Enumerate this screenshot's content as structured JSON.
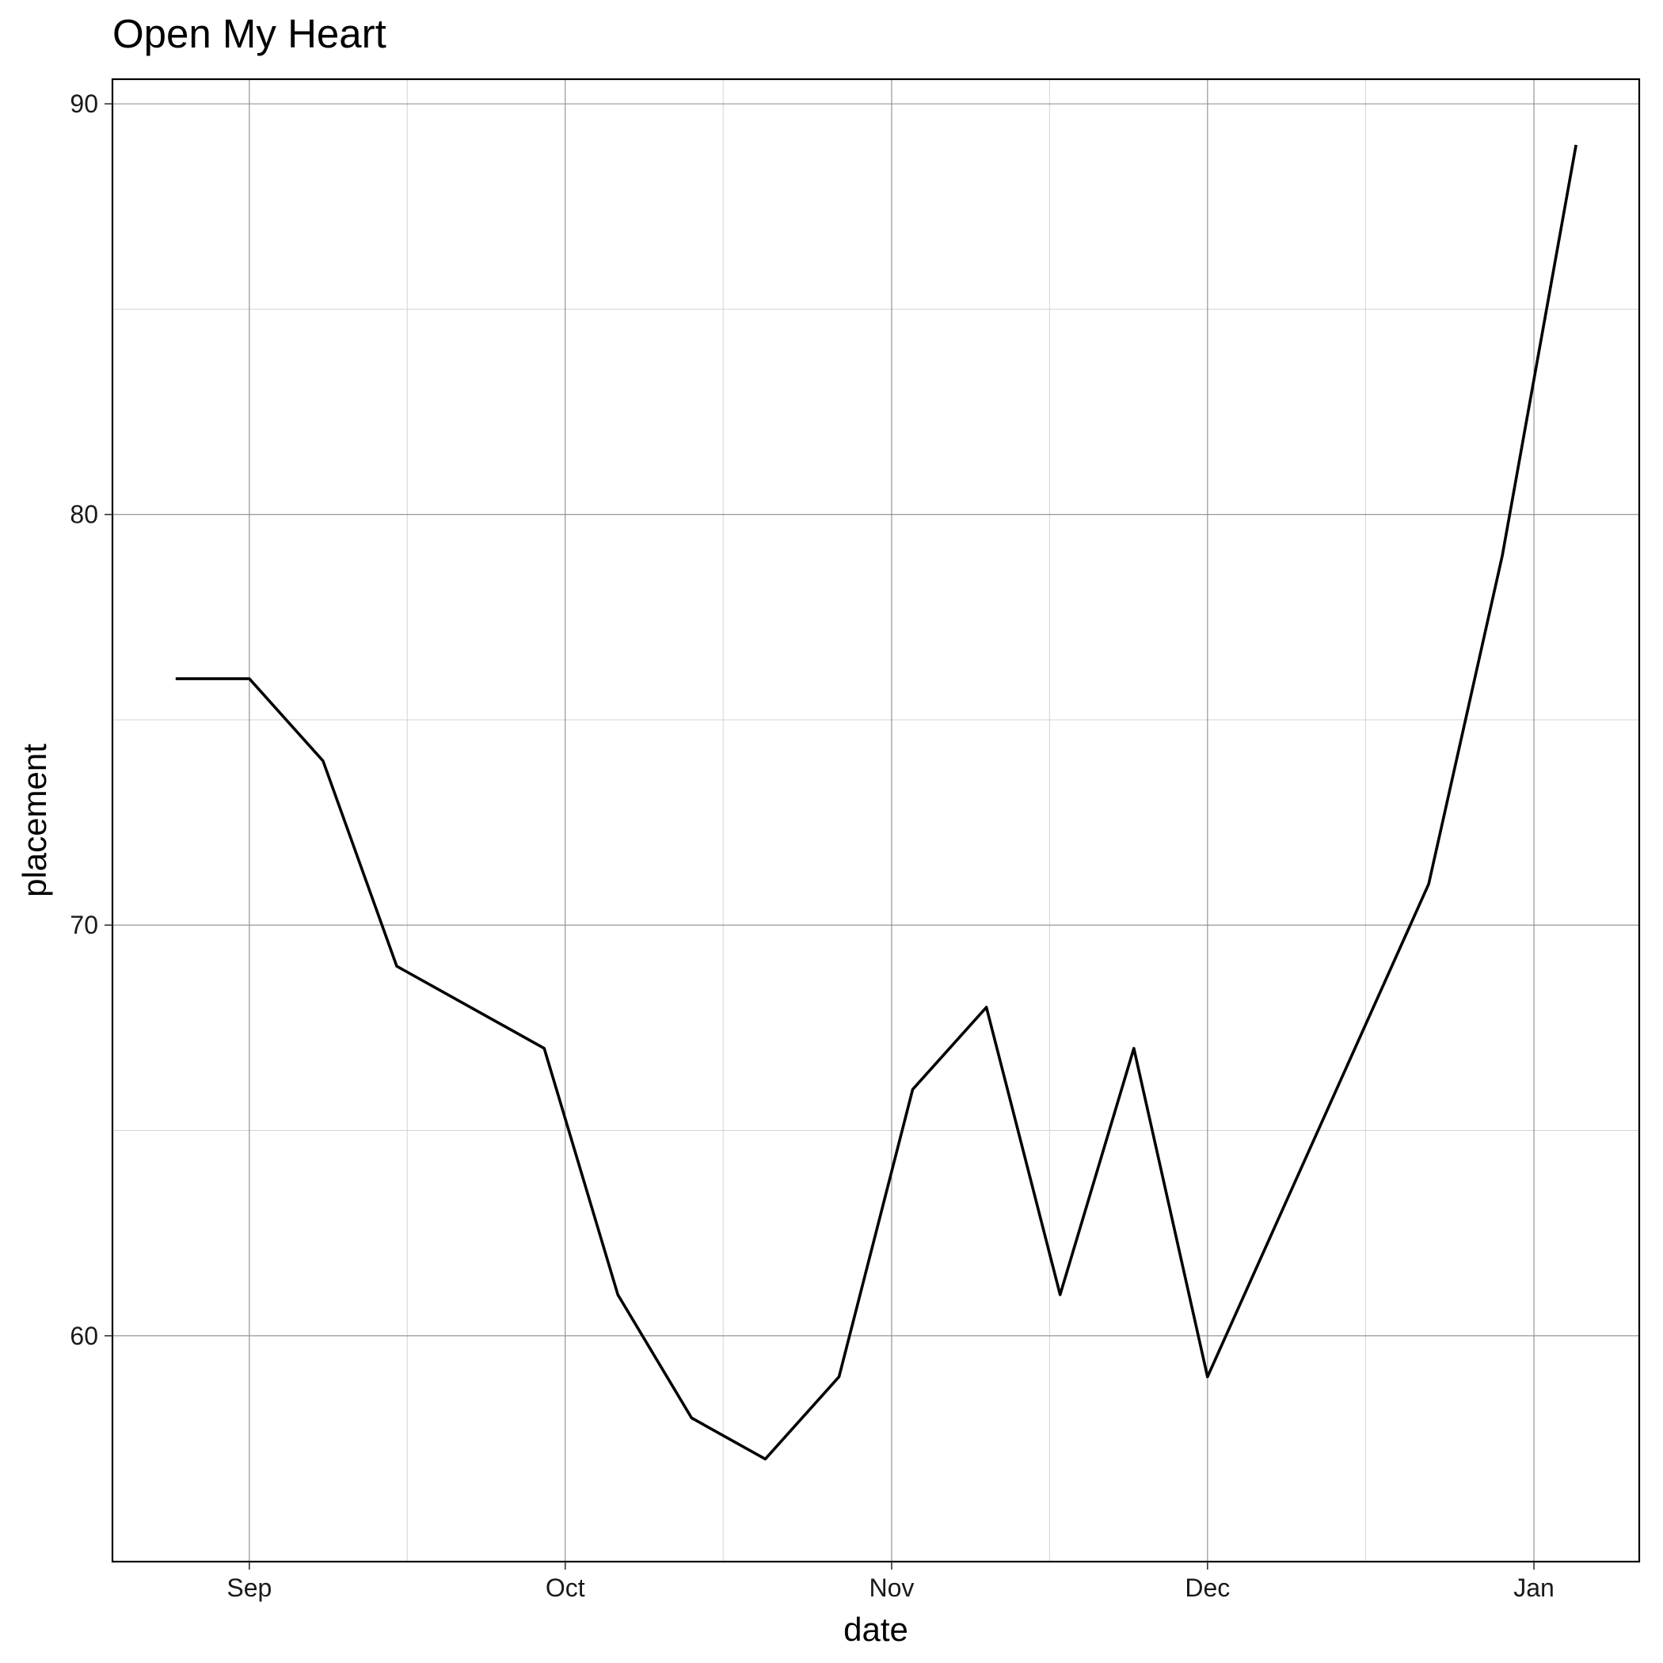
{
  "chart_data": {
    "type": "line",
    "title": "Open My Heart",
    "xlabel": "date",
    "ylabel": "placement",
    "x_tick_labels": [
      {
        "date": "2023-09-01",
        "label": "Sep"
      },
      {
        "date": "2023-10-01",
        "label": "Oct"
      },
      {
        "date": "2023-11-01",
        "label": "Nov"
      },
      {
        "date": "2023-12-01",
        "label": "Dec"
      },
      {
        "date": "2024-01-01",
        "label": "Jan"
      }
    ],
    "x_minor_ticks": [
      "2023-09-16",
      "2023-10-16",
      "2023-11-16",
      "2023-12-16"
    ],
    "y_ticks": [
      60,
      70,
      80,
      90
    ],
    "y_minor_ticks": [
      65,
      75,
      85
    ],
    "xlim": [
      "2023-08-19",
      "2024-01-11"
    ],
    "ylim": [
      54.5,
      90.6
    ],
    "grid": true,
    "series": [
      {
        "color": "#000000",
        "points": [
          {
            "x": "2023-08-25",
            "y": 76
          },
          {
            "x": "2023-09-01",
            "y": 76
          },
          {
            "x": "2023-09-08",
            "y": 74
          },
          {
            "x": "2023-09-15",
            "y": 69
          },
          {
            "x": "2023-09-29",
            "y": 67
          },
          {
            "x": "2023-10-06",
            "y": 61
          },
          {
            "x": "2023-10-13",
            "y": 58
          },
          {
            "x": "2023-10-20",
            "y": 57
          },
          {
            "x": "2023-10-27",
            "y": 59
          },
          {
            "x": "2023-11-03",
            "y": 66
          },
          {
            "x": "2023-11-10",
            "y": 68
          },
          {
            "x": "2023-11-17",
            "y": 61
          },
          {
            "x": "2023-11-24",
            "y": 67
          },
          {
            "x": "2023-12-01",
            "y": 59
          },
          {
            "x": "2023-12-22",
            "y": 71
          },
          {
            "x": "2023-12-29",
            "y": 79
          },
          {
            "x": "2024-01-05",
            "y": 89
          }
        ]
      }
    ]
  }
}
